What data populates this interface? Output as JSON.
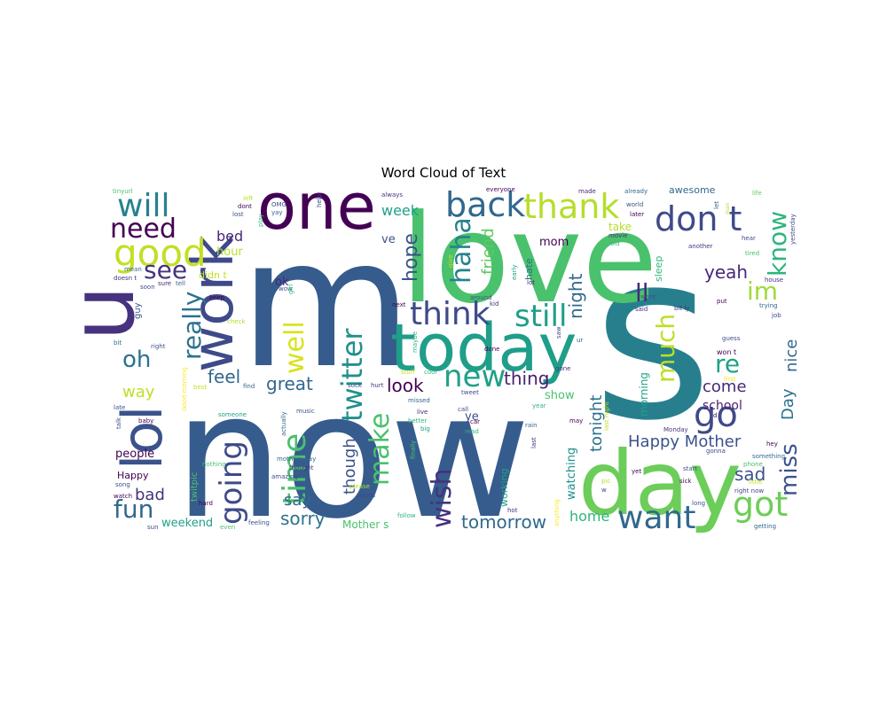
{
  "chart_data": {
    "type": "wordcloud",
    "title": "Word Cloud of Text",
    "palette": [
      "#440154",
      "#46327e",
      "#365c8d",
      "#277f8e",
      "#1fa187",
      "#4ac16d",
      "#a0da39",
      "#fde725"
    ],
    "words": [
      {
        "text": "now",
        "weight": 100,
        "color": "#365c8d"
      },
      {
        "text": "s",
        "weight": 95,
        "color": "#277f8e"
      },
      {
        "text": "m",
        "weight": 90,
        "color": "#365c8d"
      },
      {
        "text": "love",
        "weight": 80,
        "color": "#4ac16d"
      },
      {
        "text": "day",
        "weight": 60,
        "color": "#6ccd5a"
      },
      {
        "text": "today",
        "weight": 50,
        "color": "#1f9e89"
      },
      {
        "text": "one",
        "weight": 48,
        "color": "#440154"
      },
      {
        "text": "u",
        "weight": 45,
        "color": "#46327e"
      },
      {
        "text": "work",
        "weight": 44,
        "color": "#3e4a89"
      },
      {
        "text": "lol",
        "weight": 42,
        "color": "#3b528b"
      },
      {
        "text": "go",
        "weight": 30,
        "color": "#3e4a89"
      },
      {
        "text": "back",
        "weight": 30,
        "color": "#31688e"
      },
      {
        "text": "don t",
        "weight": 30,
        "color": "#3e4a89"
      },
      {
        "text": "thank",
        "weight": 30,
        "color": "#b5de2b"
      },
      {
        "text": "good",
        "weight": 30,
        "color": "#c2df23"
      },
      {
        "text": "think",
        "weight": 29,
        "color": "#3e4a89"
      },
      {
        "text": "still",
        "weight": 28,
        "color": "#1f9e89"
      },
      {
        "text": "will",
        "weight": 28,
        "color": "#26828e"
      },
      {
        "text": "got",
        "weight": 28,
        "color": "#6ece58"
      },
      {
        "text": "new",
        "weight": 27,
        "color": "#1fa187"
      },
      {
        "text": "want",
        "weight": 27,
        "color": "#31688e"
      },
      {
        "text": "going",
        "weight": 26,
        "color": "#3e4a89"
      },
      {
        "text": "twitter",
        "weight": 26,
        "color": "#21908d"
      },
      {
        "text": "time",
        "weight": 26,
        "color": "#4ac16d"
      },
      {
        "text": "make",
        "weight": 26,
        "color": "#4ac16d"
      },
      {
        "text": "really",
        "weight": 25,
        "color": "#2c728e"
      },
      {
        "text": "haha",
        "weight": 25,
        "color": "#26828e"
      },
      {
        "text": "need",
        "weight": 24,
        "color": "#440154"
      },
      {
        "text": "see",
        "weight": 24,
        "color": "#46327e"
      },
      {
        "text": "know",
        "weight": 24,
        "color": "#2fb47c"
      },
      {
        "text": "im",
        "weight": 24,
        "color": "#a0da39"
      },
      {
        "text": "well",
        "weight": 24,
        "color": "#d8e219"
      },
      {
        "text": "miss",
        "weight": 24,
        "color": "#3b528b"
      },
      {
        "text": "fun",
        "weight": 24,
        "color": "#31688e"
      },
      {
        "text": "wish",
        "weight": 24,
        "color": "#46327e"
      },
      {
        "text": "much",
        "weight": 22,
        "color": "#bddf26"
      },
      {
        "text": "ll",
        "weight": 22,
        "color": "#482878"
      },
      {
        "text": "re",
        "weight": 22,
        "color": "#1fa187"
      },
      {
        "text": "oh",
        "weight": 22,
        "color": "#2c728e"
      },
      {
        "text": "hope",
        "weight": 20,
        "color": "#3b528b"
      },
      {
        "text": "night",
        "weight": 20,
        "color": "#31688e"
      },
      {
        "text": "Happy Mother",
        "weight": 18,
        "color": "#3b528b"
      },
      {
        "text": "tonight",
        "weight": 18,
        "color": "#2c728e"
      },
      {
        "text": "nice",
        "weight": 16,
        "color": "#31688e"
      },
      {
        "text": "Day",
        "weight": 16,
        "color": "#2c728e"
      },
      {
        "text": "friend",
        "weight": 16,
        "color": "#5ec962"
      },
      {
        "text": "yeah",
        "weight": 16,
        "color": "#482878"
      },
      {
        "text": "great",
        "weight": 16,
        "color": "#31688e"
      },
      {
        "text": "feel",
        "weight": 16,
        "color": "#31688e"
      },
      {
        "text": "look",
        "weight": 16,
        "color": "#440154"
      },
      {
        "text": "thing",
        "weight": 16,
        "color": "#481f70"
      },
      {
        "text": "come",
        "weight": 16,
        "color": "#482878"
      },
      {
        "text": "sad",
        "weight": 16,
        "color": "#3b528b"
      },
      {
        "text": "tomorrow",
        "weight": 16,
        "color": "#31688e"
      },
      {
        "text": "sorry",
        "weight": 16,
        "color": "#2c728e"
      },
      {
        "text": "say",
        "weight": 16,
        "color": "#31688e"
      },
      {
        "text": "though",
        "weight": 16,
        "color": "#3b528b"
      },
      {
        "text": "bad",
        "weight": 16,
        "color": "#46327e"
      },
      {
        "text": "way",
        "weight": 16,
        "color": "#bddf26"
      },
      {
        "text": "week",
        "weight": 14,
        "color": "#1fa187"
      },
      {
        "text": "home",
        "weight": 14,
        "color": "#2fb47c"
      },
      {
        "text": "school",
        "weight": 12,
        "color": "#481f70"
      },
      {
        "text": "people",
        "weight": 12,
        "color": "#440154"
      },
      {
        "text": "bed",
        "weight": 12,
        "color": "#482878"
      },
      {
        "text": "hour",
        "weight": 12,
        "color": "#b5de2b"
      },
      {
        "text": "weekend",
        "weight": 12,
        "color": "#1fa187"
      },
      {
        "text": "ve",
        "weight": 12,
        "color": "#3b528b"
      },
      {
        "text": "mom",
        "weight": 12,
        "color": "#440154"
      },
      {
        "text": "ok",
        "weight": 12,
        "color": "#482878"
      },
      {
        "text": "ye",
        "weight": 12,
        "color": "#3e4a89"
      },
      {
        "text": "show",
        "weight": 12,
        "color": "#4ac16d"
      },
      {
        "text": "watching",
        "weight": 12,
        "color": "#21908d"
      },
      {
        "text": "morning",
        "weight": 11,
        "color": "#1fa187"
      },
      {
        "text": "Mother s",
        "weight": 11,
        "color": "#4ac16d"
      },
      {
        "text": "working",
        "weight": 11,
        "color": "#1fa187"
      },
      {
        "text": "take",
        "weight": 11,
        "color": "#b5de2b"
      },
      {
        "text": "sleep",
        "weight": 11,
        "color": "#2fb47c"
      },
      {
        "text": "didn t",
        "weight": 10,
        "color": "#c2df23"
      },
      {
        "text": "guy",
        "weight": 10,
        "color": "#3b528b"
      },
      {
        "text": "Happy",
        "weight": 10,
        "color": "#440154"
      },
      {
        "text": "twitpic",
        "weight": 9,
        "color": "#4ac16d"
      },
      {
        "text": "hate",
        "weight": 9,
        "color": "#2c728e"
      },
      {
        "text": "awesome",
        "weight": 9,
        "color": "#31688e"
      },
      {
        "text": "won t",
        "weight": 8,
        "color": "#440154"
      },
      {
        "text": "tinyurl",
        "weight": 6,
        "color": "#4ac16d"
      },
      {
        "text": "always",
        "weight": 6,
        "color": "#46327e"
      },
      {
        "text": "made",
        "weight": 6,
        "color": "#482878"
      },
      {
        "text": "already",
        "weight": 6,
        "color": "#31688e"
      },
      {
        "text": "life",
        "weight": 6,
        "color": "#5ec962"
      },
      {
        "text": "left",
        "weight": 6,
        "color": "#bddf26"
      },
      {
        "text": "dont",
        "weight": 6,
        "color": "#440154"
      },
      {
        "text": "lost",
        "weight": 6,
        "color": "#3b528b"
      },
      {
        "text": "play",
        "weight": 6,
        "color": "#2fb47c"
      },
      {
        "text": "help",
        "weight": 6,
        "color": "#3e4a89"
      },
      {
        "text": "let",
        "weight": 6,
        "color": "#31688e"
      },
      {
        "text": "man",
        "weight": 6,
        "color": "#b5de2b"
      },
      {
        "text": "yesterday",
        "weight": 6,
        "color": "#3e4a89"
      },
      {
        "text": "OMG",
        "weight": 6,
        "color": "#3e4a89"
      },
      {
        "text": "yay",
        "weight": 6,
        "color": "#31688e"
      },
      {
        "text": "world",
        "weight": 6,
        "color": "#3b528b"
      },
      {
        "text": "later",
        "weight": 6,
        "color": "#440154"
      },
      {
        "text": "movie",
        "weight": 6,
        "color": "#46327e"
      },
      {
        "text": "old",
        "weight": 6,
        "color": "#2fb47c"
      },
      {
        "text": "another",
        "weight": 6,
        "color": "#46327e"
      },
      {
        "text": "hear",
        "weight": 6,
        "color": "#3e4a89"
      },
      {
        "text": "tired",
        "weight": 6,
        "color": "#4ac16d"
      },
      {
        "text": "mean",
        "weight": 6,
        "color": "#31688e"
      },
      {
        "text": "doesn t",
        "weight": 6,
        "color": "#46327e"
      },
      {
        "text": "soon",
        "weight": 6,
        "color": "#3e4a89"
      },
      {
        "text": "sure",
        "weight": 6,
        "color": "#482878"
      },
      {
        "text": "tell",
        "weight": 6,
        "color": "#31688e"
      },
      {
        "text": "keep",
        "weight": 6,
        "color": "#440154"
      },
      {
        "text": "wow",
        "weight": 6,
        "color": "#3b528b"
      },
      {
        "text": "girl",
        "weight": 6,
        "color": "#2fb47c"
      },
      {
        "text": "give",
        "weight": 6,
        "color": "#c2df23"
      },
      {
        "text": "early",
        "weight": 6,
        "color": "#1fa187"
      },
      {
        "text": "lot",
        "weight": 6,
        "color": "#482878"
      },
      {
        "text": "went",
        "weight": 6,
        "color": "#3b528b"
      },
      {
        "text": "put",
        "weight": 6,
        "color": "#440154"
      },
      {
        "text": "house",
        "weight": 6,
        "color": "#46327e"
      },
      {
        "text": "trying",
        "weight": 6,
        "color": "#31688e"
      },
      {
        "text": "job",
        "weight": 6,
        "color": "#3e4a89"
      },
      {
        "text": "check",
        "weight": 6,
        "color": "#b5de2b"
      },
      {
        "text": "next",
        "weight": 6,
        "color": "#440154"
      },
      {
        "text": "around",
        "weight": 6,
        "color": "#3b528b"
      },
      {
        "text": "kid",
        "weight": 6,
        "color": "#46327e"
      },
      {
        "text": "said",
        "weight": 6,
        "color": "#46327e"
      },
      {
        "text": "bit ly",
        "weight": 6,
        "color": "#46327e"
      },
      {
        "text": "bit",
        "weight": 6,
        "color": "#31688e"
      },
      {
        "text": "right",
        "weight": 6,
        "color": "#3b528b"
      },
      {
        "text": "saw",
        "weight": 6,
        "color": "#3e4a89"
      },
      {
        "text": "guess",
        "weight": 6,
        "color": "#3e4a89"
      },
      {
        "text": "maybe",
        "weight": 6,
        "color": "#2fb47c"
      },
      {
        "text": "ur",
        "weight": 6,
        "color": "#31688e"
      },
      {
        "text": "done",
        "weight": 6,
        "color": "#440154"
      },
      {
        "text": "stuff",
        "weight": 6,
        "color": "#bddf26"
      },
      {
        "text": "cool",
        "weight": 6,
        "color": "#2fb47c"
      },
      {
        "text": "gone",
        "weight": 6,
        "color": "#46327e"
      },
      {
        "text": "first",
        "weight": 6,
        "color": "#fde725"
      },
      {
        "text": "best",
        "weight": 6,
        "color": "#c2df23"
      },
      {
        "text": "find",
        "weight": 6,
        "color": "#31688e"
      },
      {
        "text": "suck",
        "weight": 6,
        "color": "#3b528b"
      },
      {
        "text": "hurt",
        "weight": 6,
        "color": "#46327e"
      },
      {
        "text": "tweet",
        "weight": 6,
        "color": "#3e4a89"
      },
      {
        "text": "missed",
        "weight": 6,
        "color": "#31688e"
      },
      {
        "text": "Good morning",
        "weight": 6,
        "color": "#fde725"
      },
      {
        "text": "baby",
        "weight": 6,
        "color": "#440154"
      },
      {
        "text": "talk",
        "weight": 6,
        "color": "#3e4a89"
      },
      {
        "text": "late",
        "weight": 6,
        "color": "#3b528b"
      },
      {
        "text": "someone",
        "weight": 6,
        "color": "#1fa187"
      },
      {
        "text": "actually",
        "weight": 6,
        "color": "#31688e"
      },
      {
        "text": "music",
        "weight": 6,
        "color": "#3b528b"
      },
      {
        "text": "live",
        "weight": 6,
        "color": "#482878"
      },
      {
        "text": "call",
        "weight": 6,
        "color": "#3e4a89"
      },
      {
        "text": "year",
        "weight": 6,
        "color": "#2fb47c"
      },
      {
        "text": "may",
        "weight": 6,
        "color": "#440154"
      },
      {
        "text": "last night",
        "weight": 6,
        "color": "#c2df23"
      },
      {
        "text": "hey",
        "weight": 6,
        "color": "#440154"
      },
      {
        "text": "nothing",
        "weight": 6,
        "color": "#4ac16d"
      },
      {
        "text": "mothers day",
        "weight": 6,
        "color": "#31688e"
      },
      {
        "text": "thought",
        "weight": 6,
        "color": "#46327e"
      },
      {
        "text": "amazing",
        "weight": 6,
        "color": "#3e4a89"
      },
      {
        "text": "better",
        "weight": 6,
        "color": "#2fb47c"
      },
      {
        "text": "big",
        "weight": 6,
        "color": "#1fa187"
      },
      {
        "text": "car",
        "weight": 6,
        "color": "#440154"
      },
      {
        "text": "read",
        "weight": 6,
        "color": "#2fb47c"
      },
      {
        "text": "finally",
        "weight": 6,
        "color": "#4ac16d"
      },
      {
        "text": "rain",
        "weight": 6,
        "color": "#31688e"
      },
      {
        "text": "hot",
        "weight": 6,
        "color": "#46327e"
      },
      {
        "text": "pic",
        "weight": 6,
        "color": "#b5de2b"
      },
      {
        "text": "Monday",
        "weight": 6,
        "color": "#46327e"
      },
      {
        "text": "gonna",
        "weight": 6,
        "color": "#3e4a89"
      },
      {
        "text": "something",
        "weight": 6,
        "color": "#31688e"
      },
      {
        "text": "phone",
        "weight": 6,
        "color": "#4ac16d"
      },
      {
        "text": "little",
        "weight": 6,
        "color": "#c2df23"
      },
      {
        "text": "start",
        "weight": 6,
        "color": "#3b528b"
      },
      {
        "text": "sick",
        "weight": 6,
        "color": "#440154"
      },
      {
        "text": "song",
        "weight": 6,
        "color": "#3b528b"
      },
      {
        "text": "watch",
        "weight": 6,
        "color": "#440154"
      },
      {
        "text": "sun",
        "weight": 6,
        "color": "#3e4a89"
      },
      {
        "text": "hard",
        "weight": 6,
        "color": "#440154"
      },
      {
        "text": "even",
        "weight": 6,
        "color": "#4ac16d"
      },
      {
        "text": "feeling",
        "weight": 6,
        "color": "#3b528b"
      },
      {
        "text": "please",
        "weight": 6,
        "color": "#b5de2b"
      },
      {
        "text": "sound",
        "weight": 6,
        "color": "#3e4a89"
      },
      {
        "text": "follow",
        "weight": 6,
        "color": "#2fb47c"
      },
      {
        "text": "anything",
        "weight": 6,
        "color": "#fde725"
      },
      {
        "text": "yet",
        "weight": 6,
        "color": "#440154"
      },
      {
        "text": "long",
        "weight": 6,
        "color": "#3b528b"
      },
      {
        "text": "getting",
        "weight": 6,
        "color": "#31688e"
      },
      {
        "text": "right now",
        "weight": 6,
        "color": "#3e4a89"
      },
      {
        "text": "d",
        "weight": 6,
        "color": "#440154"
      },
      {
        "text": "w",
        "weight": 6,
        "color": "#3e4a89"
      },
      {
        "text": "everyone",
        "weight": 6,
        "color": "#440154"
      },
      {
        "text": "last",
        "weight": 6,
        "color": "#46327e"
      }
    ]
  }
}
